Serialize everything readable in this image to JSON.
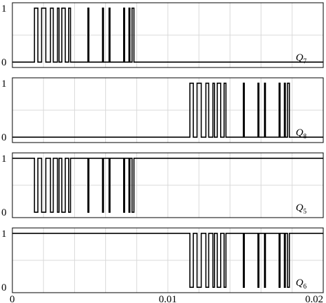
{
  "chart_data": [
    {
      "type": "line",
      "series": [
        {
          "name": "Q7",
          "x": [
            0,
            0.00142,
            0.00142,
            0.00164,
            0.00164,
            0.00188,
            0.00188,
            0.00215,
            0.00215,
            0.00245,
            0.00245,
            0.00263,
            0.00263,
            0.0029,
            0.0029,
            0.003,
            0.003,
            0.00318,
            0.00318,
            0.0034,
            0.0034,
            0.00362,
            0.00362,
            0.00374,
            0.00374,
            0.00486,
            0.00486,
            0.00492,
            0.00492,
            0.0058,
            0.0058,
            0.00586,
            0.00586,
            0.00622,
            0.00622,
            0.00628,
            0.00628,
            0.00716,
            0.00716,
            0.00722,
            0.00722,
            0.0075,
            0.0075,
            0.00756,
            0.00756,
            0.0077,
            0.0077,
            0.00782,
            0.00782,
            0.0083,
            0.0083,
            0.02
          ],
          "y": [
            0,
            0,
            1,
            1,
            0,
            0,
            1,
            1,
            0,
            0,
            1,
            1,
            0,
            0,
            1,
            1,
            0,
            0,
            1,
            1,
            0,
            0,
            1,
            1,
            0,
            0,
            1,
            1,
            0,
            0,
            1,
            1,
            0,
            0,
            1,
            1,
            0,
            0,
            1,
            1,
            0,
            0,
            1,
            1,
            0,
            0,
            1,
            1,
            0,
            0,
            0,
            0
          ]
        }
      ],
      "ylim": [
        -0.1,
        1.1
      ],
      "yticks": [
        "0",
        "1"
      ],
      "xlim": [
        0,
        0.02
      ],
      "xticks": [],
      "label": "Q",
      "subscript": "7",
      "grid": true
    },
    {
      "type": "line",
      "series": [
        {
          "name": "Q8",
          "x": [
            0,
            0.01142,
            0.01142,
            0.01164,
            0.01164,
            0.01188,
            0.01188,
            0.01215,
            0.01215,
            0.01245,
            0.01245,
            0.01263,
            0.01263,
            0.0129,
            0.0129,
            0.013,
            0.013,
            0.01318,
            0.01318,
            0.0134,
            0.0134,
            0.01362,
            0.01362,
            0.01374,
            0.01374,
            0.01486,
            0.01486,
            0.01492,
            0.01492,
            0.0158,
            0.0158,
            0.01586,
            0.01586,
            0.01622,
            0.01622,
            0.01628,
            0.01628,
            0.01716,
            0.01716,
            0.01722,
            0.01722,
            0.0175,
            0.0175,
            0.01756,
            0.01756,
            0.0177,
            0.0177,
            0.01782,
            0.01782,
            0.0183,
            0.0183,
            0.02
          ],
          "y": [
            0,
            0,
            1,
            1,
            0,
            0,
            1,
            1,
            0,
            0,
            1,
            1,
            0,
            0,
            1,
            1,
            0,
            0,
            1,
            1,
            0,
            0,
            1,
            1,
            0,
            0,
            1,
            1,
            0,
            0,
            1,
            1,
            0,
            0,
            1,
            1,
            0,
            0,
            1,
            1,
            0,
            0,
            1,
            1,
            0,
            0,
            1,
            1,
            0,
            0,
            0,
            0
          ]
        }
      ],
      "ylim": [
        -0.1,
        1.1
      ],
      "yticks": [
        "0",
        "1"
      ],
      "xlim": [
        0,
        0.02
      ],
      "xticks": [],
      "label": "Q",
      "subscript": "8",
      "grid": true
    },
    {
      "type": "line",
      "series": [
        {
          "name": "Q5",
          "x": [
            0,
            0.00142,
            0.00142,
            0.00164,
            0.00164,
            0.00188,
            0.00188,
            0.00215,
            0.00215,
            0.00245,
            0.00245,
            0.00263,
            0.00263,
            0.0029,
            0.0029,
            0.003,
            0.003,
            0.00318,
            0.00318,
            0.0034,
            0.0034,
            0.00362,
            0.00362,
            0.00374,
            0.00374,
            0.00486,
            0.00486,
            0.00492,
            0.00492,
            0.0058,
            0.0058,
            0.00586,
            0.00586,
            0.00622,
            0.00622,
            0.00628,
            0.00628,
            0.00716,
            0.00716,
            0.00722,
            0.00722,
            0.0075,
            0.0075,
            0.00756,
            0.00756,
            0.0077,
            0.0077,
            0.00782,
            0.00782,
            0.0083,
            0.0083,
            0.02
          ],
          "y": [
            1,
            1,
            0,
            0,
            1,
            1,
            0,
            0,
            1,
            1,
            0,
            0,
            1,
            1,
            0,
            0,
            1,
            1,
            0,
            0,
            1,
            1,
            0,
            0,
            1,
            1,
            0,
            0,
            1,
            1,
            0,
            0,
            1,
            1,
            0,
            0,
            1,
            1,
            0,
            0,
            1,
            1,
            0,
            0,
            1,
            1,
            0,
            0,
            1,
            1,
            1,
            1
          ]
        }
      ],
      "ylim": [
        -0.1,
        1.1
      ],
      "yticks": [
        "0",
        "1"
      ],
      "xlim": [
        0,
        0.02
      ],
      "xticks": [],
      "label": "Q",
      "subscript": "5",
      "grid": true
    },
    {
      "type": "line",
      "series": [
        {
          "name": "Q6",
          "x": [
            0,
            0.01142,
            0.01142,
            0.01164,
            0.01164,
            0.01188,
            0.01188,
            0.01215,
            0.01215,
            0.01245,
            0.01245,
            0.01263,
            0.01263,
            0.0129,
            0.0129,
            0.013,
            0.013,
            0.01318,
            0.01318,
            0.0134,
            0.0134,
            0.01362,
            0.01362,
            0.01374,
            0.01374,
            0.01486,
            0.01486,
            0.01492,
            0.01492,
            0.0158,
            0.0158,
            0.01586,
            0.01586,
            0.01622,
            0.01622,
            0.01628,
            0.01628,
            0.01716,
            0.01716,
            0.01722,
            0.01722,
            0.0175,
            0.0175,
            0.01756,
            0.01756,
            0.0177,
            0.0177,
            0.01782,
            0.01782,
            0.0183,
            0.0183,
            0.02
          ],
          "y": [
            1,
            1,
            0,
            0,
            1,
            1,
            0,
            0,
            1,
            1,
            0,
            0,
            1,
            1,
            0,
            0,
            1,
            1,
            0,
            0,
            1,
            1,
            0,
            0,
            1,
            1,
            0,
            0,
            1,
            1,
            0,
            0,
            1,
            1,
            0,
            0,
            1,
            1,
            0,
            0,
            1,
            1,
            0,
            0,
            1,
            1,
            0,
            0,
            1,
            1,
            1,
            1
          ]
        }
      ],
      "ylim": [
        -0.1,
        1.1
      ],
      "yticks": [
        "0",
        "1"
      ],
      "xlim": [
        0,
        0.02
      ],
      "xticks": [
        "0",
        "0.01",
        "0.02"
      ],
      "label": "Q",
      "subscript": "6",
      "grid": true
    }
  ],
  "colors": {
    "line": "#000000",
    "grid": "#d9d9d9",
    "frame": "#000000"
  }
}
